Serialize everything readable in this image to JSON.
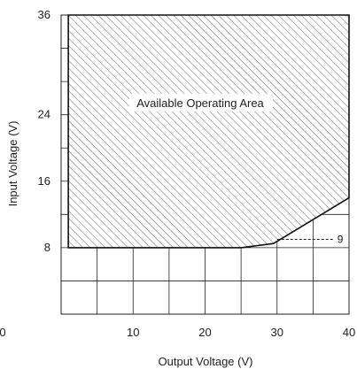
{
  "chart_data": {
    "type": "area",
    "title": "",
    "xlabel": "Output Voltage (V)",
    "ylabel": "Input Voltage (V)",
    "xlim": [
      0,
      40
    ],
    "ylim": [
      0,
      36
    ],
    "x_ticks": [
      10,
      20,
      30,
      40
    ],
    "x_ticks_labels": [
      "10",
      "20",
      "30",
      "40"
    ],
    "origin_label": "0",
    "y_ticks": [
      8,
      16,
      24,
      36
    ],
    "y_ticks_labels": [
      "8",
      "16",
      "24",
      "36"
    ],
    "grid": true,
    "grid_x_step": 5,
    "grid_y_step": 4,
    "region": {
      "label": "Available Operating Area",
      "fill_pattern": "diagonal-hatch",
      "boundary": [
        [
          1,
          8
        ],
        [
          25,
          8
        ],
        [
          29.5,
          8.5
        ],
        [
          40,
          14
        ],
        [
          40,
          36
        ],
        [
          1,
          36
        ]
      ]
    },
    "annotations": [
      {
        "label": "9",
        "y": 9,
        "x_from": 30,
        "x_to": 38,
        "style": "dashed"
      }
    ]
  }
}
